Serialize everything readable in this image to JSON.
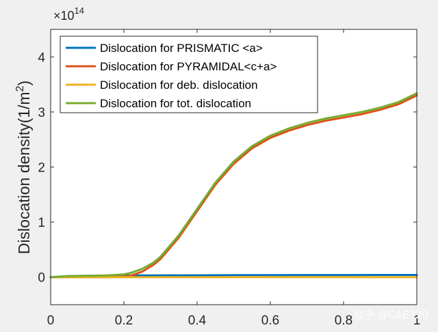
{
  "chart_data": {
    "type": "line",
    "title": "",
    "xlabel": "",
    "ylabel_main": "Dislocation density(1/m",
    "ylabel_sup": "2",
    "ylabel_close": ")",
    "exponent_prefix": "×10",
    "exponent_power": "14",
    "xlim": [
      0,
      1
    ],
    "ylim": [
      -0.5,
      4.5
    ],
    "x_ticks": [
      0,
      0.2,
      0.4,
      0.6,
      0.8,
      1
    ],
    "x_tick_labels": [
      "0",
      "0.2",
      "0.4",
      "0.6",
      "0.8",
      "1"
    ],
    "y_ticks": [
      0,
      1,
      2,
      3,
      4
    ],
    "y_tick_labels": [
      "0",
      "1",
      "2",
      "3",
      "4"
    ],
    "legend_position": "top-left",
    "series": [
      {
        "name": "Dislocation for PRISMATIC <a>",
        "color": "#0072BD",
        "x": [
          0,
          0.05,
          0.1,
          0.2,
          0.3,
          0.4,
          0.5,
          0.6,
          0.7,
          0.8,
          0.9,
          1.0
        ],
        "y": [
          0,
          0.02,
          0.025,
          0.03,
          0.032,
          0.034,
          0.036,
          0.037,
          0.038,
          0.039,
          0.04,
          0.04
        ]
      },
      {
        "name": "Dislocation for PYRAMIDAL<c+a>",
        "color": "#D95319",
        "x": [
          0,
          0.05,
          0.1,
          0.15,
          0.2,
          0.22,
          0.25,
          0.28,
          0.3,
          0.35,
          0.4,
          0.45,
          0.5,
          0.55,
          0.6,
          0.65,
          0.7,
          0.75,
          0.8,
          0.85,
          0.9,
          0.95,
          1.0
        ],
        "y": [
          0,
          0,
          0,
          0,
          0.01,
          0.03,
          0.1,
          0.22,
          0.33,
          0.72,
          1.2,
          1.68,
          2.06,
          2.34,
          2.53,
          2.66,
          2.76,
          2.84,
          2.9,
          2.96,
          3.04,
          3.14,
          3.3
        ]
      },
      {
        "name": "Dislocation for deb. dislocation",
        "color": "#EDB120",
        "x": [
          0,
          0.2,
          0.4,
          0.6,
          0.8,
          1.0
        ],
        "y": [
          0,
          0,
          0,
          0,
          0,
          0
        ]
      },
      {
        "name": "Dislocation for tot. dislocation",
        "color": "#77AC30",
        "x": [
          0,
          0.05,
          0.1,
          0.15,
          0.2,
          0.22,
          0.25,
          0.28,
          0.3,
          0.35,
          0.4,
          0.45,
          0.5,
          0.55,
          0.6,
          0.65,
          0.7,
          0.75,
          0.8,
          0.85,
          0.9,
          0.95,
          1.0
        ],
        "y": [
          0,
          0.02,
          0.025,
          0.03,
          0.05,
          0.08,
          0.15,
          0.26,
          0.37,
          0.76,
          1.24,
          1.72,
          2.1,
          2.38,
          2.57,
          2.7,
          2.8,
          2.88,
          2.94,
          3.0,
          3.08,
          3.18,
          3.34
        ]
      }
    ]
  },
  "watermark": "知乎 @CAE320"
}
